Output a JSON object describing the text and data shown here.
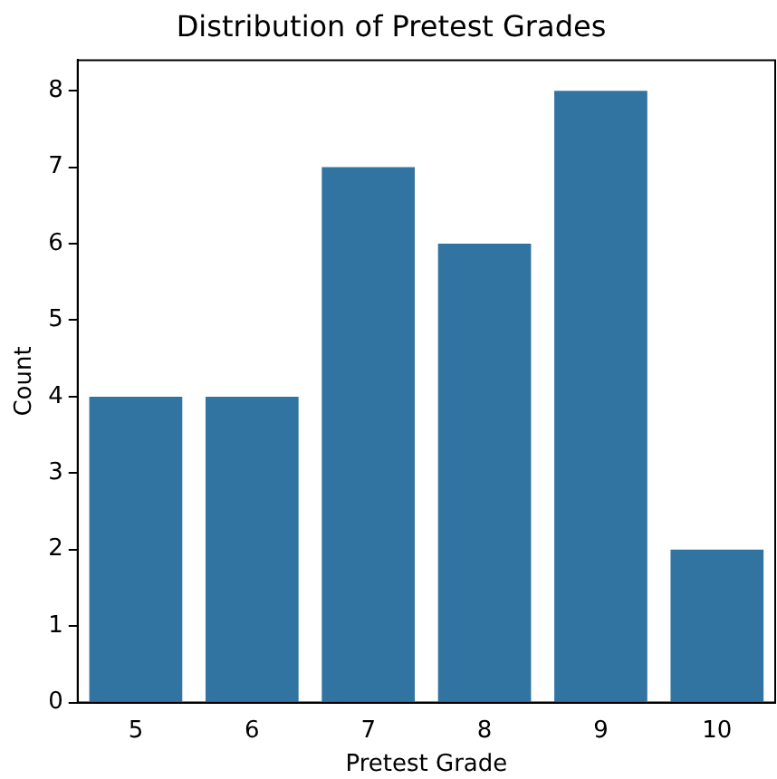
{
  "chart_data": {
    "type": "bar",
    "title": "Distribution of Pretest Grades",
    "xlabel": "Pretest Grade",
    "ylabel": "Count",
    "categories": [
      "5",
      "6",
      "7",
      "8",
      "9",
      "10"
    ],
    "values": [
      4,
      4,
      7,
      6,
      8,
      2
    ],
    "color": "#3274a1",
    "ylim": [
      0,
      8.4
    ],
    "yticks": [
      0,
      1,
      2,
      3,
      4,
      5,
      6,
      7,
      8
    ],
    "grid": false,
    "legend": false
  }
}
